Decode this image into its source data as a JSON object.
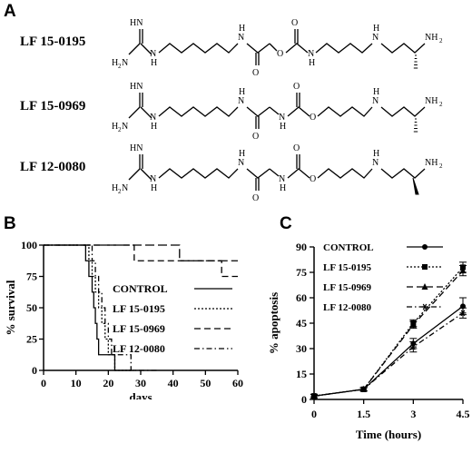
{
  "panel_a": {
    "letter": "A",
    "compounds": [
      {
        "label": "LF 15-0195",
        "stereo": "hashed"
      },
      {
        "label": "LF 15-0969",
        "stereo": "hashed"
      },
      {
        "label": "LF 12-0080",
        "stereo": "wedge"
      }
    ],
    "atoms": {
      "hn": "HN",
      "h2n_h": "H",
      "h2n_sub": "2",
      "h2n_n": "N",
      "nh_n": "N",
      "nh_h": "H",
      "h": "H",
      "o": "O",
      "nh2_nh": "NH",
      "nh2_sub": "2"
    }
  },
  "panel_b": {
    "letter": "B"
  },
  "panel_c": {
    "letter": "C"
  },
  "chart_data": [
    {
      "type": "line",
      "subtype": "kaplan-meier step",
      "xlabel": "days",
      "ylabel": "% survival",
      "xlim": [
        0,
        60
      ],
      "ylim": [
        0,
        100
      ],
      "xticks": [
        0,
        10,
        20,
        30,
        40,
        50,
        60
      ],
      "yticks": [
        0,
        25,
        50,
        75,
        100
      ],
      "legend_position": "right",
      "series": [
        {
          "name": "CONTROL",
          "style": "solid",
          "steps": [
            [
              0,
              100
            ],
            [
              13,
              100
            ],
            [
              13,
              87.5
            ],
            [
              14,
              87.5
            ],
            [
              14,
              75
            ],
            [
              15,
              75
            ],
            [
              15,
              62.5
            ],
            [
              15.5,
              62.5
            ],
            [
              15.5,
              50
            ],
            [
              16,
              50
            ],
            [
              16,
              37.5
            ],
            [
              16.5,
              37.5
            ],
            [
              16.5,
              25
            ],
            [
              17,
              25
            ],
            [
              17,
              12.5
            ],
            [
              22,
              12.5
            ],
            [
              22,
              0
            ],
            [
              27,
              0
            ]
          ]
        },
        {
          "name": "LF 15-0195",
          "style": "dotted",
          "steps": [
            [
              0,
              100
            ],
            [
              14,
              100
            ],
            [
              14,
              87.5
            ],
            [
              15,
              87.5
            ],
            [
              15,
              75
            ],
            [
              16,
              75
            ],
            [
              16,
              62.5
            ],
            [
              17,
              62.5
            ],
            [
              17,
              50
            ],
            [
              18,
              50
            ],
            [
              18,
              37.5
            ],
            [
              19,
              37.5
            ],
            [
              19,
              25
            ],
            [
              20,
              25
            ],
            [
              20,
              12.5
            ],
            [
              22,
              12.5
            ],
            [
              22,
              0
            ],
            [
              28,
              0
            ]
          ]
        },
        {
          "name": "LF 15-0969",
          "style": "dashed",
          "steps": [
            [
              0,
              100
            ],
            [
              28,
              100
            ],
            [
              28,
              87.5
            ],
            [
              55,
              87.5
            ],
            [
              55,
              75
            ],
            [
              60,
              75
            ]
          ]
        },
        {
          "name": "LF 12-0080",
          "style": "dash-dot",
          "steps": [
            [
              0,
              100
            ],
            [
              15,
              100
            ],
            [
              15,
              87.5
            ],
            [
              16,
              87.5
            ],
            [
              16,
              75
            ],
            [
              17,
              75
            ],
            [
              17,
              62.5
            ],
            [
              18,
              62.5
            ],
            [
              18,
              50
            ],
            [
              19,
              50
            ],
            [
              19,
              37.5
            ],
            [
              20,
              37.5
            ],
            [
              20,
              25
            ],
            [
              21,
              25
            ],
            [
              21,
              12.5
            ],
            [
              27,
              12.5
            ],
            [
              27,
              0
            ],
            [
              35,
              0
            ]
          ]
        },
        {
          "name": "",
          "style": "long-dash",
          "steps": [
            [
              0,
              100
            ],
            [
              42,
              100
            ],
            [
              42,
              87.5
            ],
            [
              60,
              87.5
            ]
          ]
        }
      ],
      "x_tick_labels": [
        "0",
        "10",
        "20",
        "30",
        "40",
        "50",
        "60"
      ],
      "y_tick_labels": [
        "0",
        "25",
        "50",
        "75",
        "100"
      ]
    },
    {
      "type": "line",
      "xlabel": "Time (hours)",
      "ylabel": "% apoptosis",
      "xlim": [
        0,
        4.5
      ],
      "ylim": [
        0,
        90
      ],
      "xticks": [
        0,
        1.5,
        3,
        4.5
      ],
      "yticks": [
        0,
        15,
        30,
        45,
        60,
        75,
        90
      ],
      "x_tick_labels": [
        "0",
        "1.5",
        "3",
        "4.5"
      ],
      "y_tick_labels": [
        "0",
        "15",
        "30",
        "45",
        "60",
        "75",
        "90"
      ],
      "legend_position": "top-left",
      "series": [
        {
          "name": "CONTROL",
          "style": "solid",
          "marker": "circle",
          "x": [
            0,
            1.5,
            3,
            4.5
          ],
          "y": [
            2,
            6,
            33,
            55
          ],
          "err": [
            1,
            1,
            3,
            5
          ]
        },
        {
          "name": "LF 15-0195",
          "style": "dotted",
          "marker": "square",
          "x": [
            0,
            1.5,
            3,
            4.5
          ],
          "y": [
            2,
            6,
            45,
            78
          ],
          "err": [
            1,
            1,
            2,
            3
          ]
        },
        {
          "name": "LF 15-0969",
          "style": "dashed",
          "marker": "triangle",
          "x": [
            0,
            1.5,
            3,
            4.5
          ],
          "y": [
            2,
            6,
            44,
            76
          ],
          "err": [
            1,
            1,
            2,
            3
          ]
        },
        {
          "name": "LF 12-0080",
          "style": "dash-dot",
          "marker": "asterisk",
          "x": [
            0,
            1.5,
            3,
            4.5
          ],
          "y": [
            2,
            6,
            31,
            51
          ],
          "err": [
            1,
            1,
            3,
            3
          ]
        }
      ]
    }
  ]
}
